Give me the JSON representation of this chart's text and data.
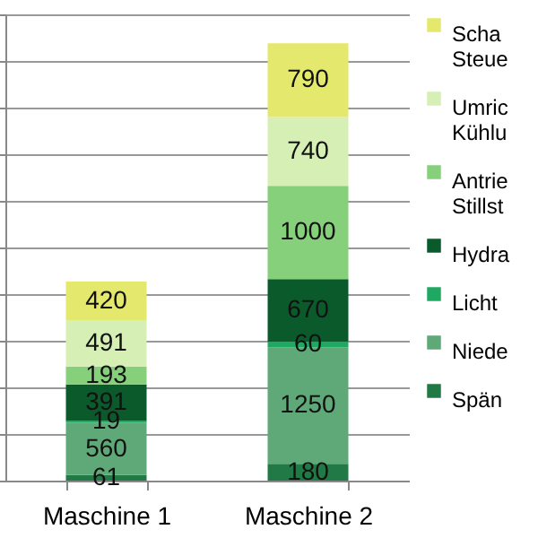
{
  "chart_data": {
    "type": "bar",
    "stacked": true,
    "categories": [
      "Maschine 1",
      "Maschine 2"
    ],
    "series": [
      {
        "name": "Spän",
        "color": "#217a45",
        "values": [
          61,
          180
        ]
      },
      {
        "name": "Niede",
        "color": "#5fa878",
        "values": [
          560,
          1250
        ]
      },
      {
        "name": "Licht",
        "color": "#1fa862",
        "values": [
          19,
          60
        ]
      },
      {
        "name": "Hydra",
        "color": "#0b5a2c",
        "values": [
          391,
          670
        ]
      },
      {
        "name": "Antrie\nStillst",
        "color": "#86d07c",
        "values": [
          193,
          1000
        ]
      },
      {
        "name": "Umric\nKühlu",
        "color": "#d6efb4",
        "values": [
          491,
          740
        ]
      },
      {
        "name": "Scha\nSteue",
        "color": "#e4e86c",
        "values": [
          420,
          790
        ]
      }
    ],
    "ylim": [
      0,
      5000
    ],
    "grid": "y",
    "legend": "right",
    "data_labels": true,
    "tick_labels": "x"
  }
}
